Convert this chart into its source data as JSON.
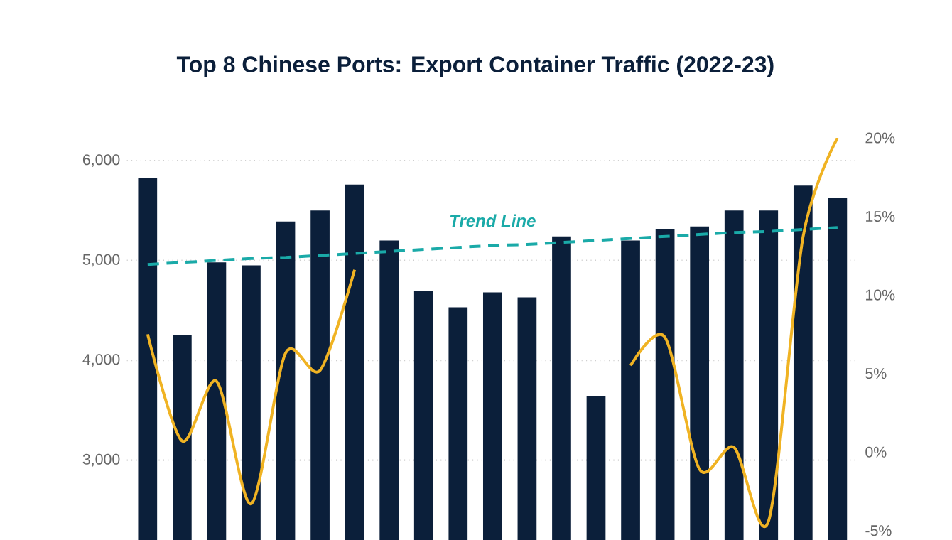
{
  "chart_data": {
    "type": "bar",
    "title": "Top 8  Chinese Ports: Export Container Traffic (2022-23)",
    "categories": [
      null,
      null,
      null,
      null,
      null,
      null,
      null,
      null,
      null,
      null,
      null,
      null,
      null,
      null,
      null,
      null,
      null,
      null,
      null,
      null,
      null
    ],
    "series": [
      {
        "color": "#0b1f3a",
        "values": [
          5830,
          4250,
          4980,
          4950,
          5390,
          5500,
          5760,
          5200,
          4690,
          4530,
          4680,
          4630,
          5240,
          3640,
          5200,
          5310,
          5340,
          5500,
          5500,
          5750,
          5630
        ]
      },
      {
        "type": "line",
        "axis": "y2",
        "color": "#f0b323",
        "values": [
          7.5,
          0.7,
          4.5,
          -3.3,
          6.3,
          5.2,
          11.6,
          null,
          null,
          null,
          null,
          null,
          null,
          null,
          5.5,
          7.3,
          -1.1,
          0.3,
          -4.4,
          13.7,
          20
        ]
      },
      {
        "type": "line",
        "name": "Trend Line",
        "line_style": "dashed",
        "color": "#1aaaa8",
        "values": [
          4960,
          4980,
          5000,
          5020,
          5030,
          5050,
          5070,
          5090,
          5110,
          5130,
          5150,
          5160,
          5180,
          5200,
          5220,
          5240,
          5260,
          5280,
          5290,
          5310,
          5330
        ]
      }
    ],
    "ylim": [
      2200,
      6000
    ],
    "yticks": [
      {
        "value": 3000,
        "label": "3,000"
      },
      {
        "value": 4000,
        "label": "4,000"
      },
      {
        "value": 5000,
        "label": "5,000"
      },
      {
        "value": 6000,
        "label": "6,000"
      }
    ],
    "y2lim": [
      -5.6,
      20
    ],
    "y2ticks": [
      {
        "value": -5,
        "label": "-5%"
      },
      {
        "value": 0,
        "label": "0%"
      },
      {
        "value": 5,
        "label": "5%"
      },
      {
        "value": 10,
        "label": "10%"
      },
      {
        "value": 15,
        "label": "15%"
      },
      {
        "value": 20,
        "label": "20%"
      }
    ],
    "grid": "y",
    "tick_labels": "y",
    "marker": "none"
  }
}
